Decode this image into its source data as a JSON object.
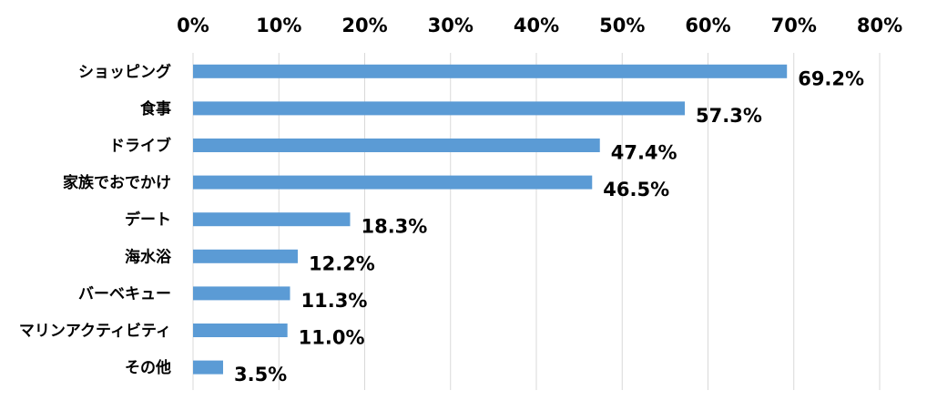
{
  "chart_data": {
    "type": "bar",
    "orientation": "horizontal",
    "categories": [
      "ショッピング",
      "食事",
      "ドライブ",
      "家族でおでかけ",
      "デート",
      "海水浴",
      "バーベキュー",
      "マリンアクティビティ",
      "その他"
    ],
    "values": [
      69.2,
      57.3,
      47.4,
      46.5,
      18.3,
      12.2,
      11.3,
      11.0,
      3.5
    ],
    "value_labels": [
      "69.2%",
      "57.3%",
      "47.4%",
      "46.5%",
      "18.3%",
      "12.2%",
      "11.3%",
      "11.0%",
      "3.5%"
    ],
    "x_ticks": [
      0,
      10,
      20,
      30,
      40,
      50,
      60,
      70,
      80
    ],
    "x_tick_labels": [
      "0%",
      "10%",
      "20%",
      "30%",
      "40%",
      "50%",
      "60%",
      "70%",
      "80%"
    ],
    "xlim": [
      0,
      80
    ],
    "x_axis_position": "top",
    "grid": true,
    "legend": "none",
    "bar_color": "#5b9bd5",
    "grid_color": "#d9d9d9",
    "title": "",
    "xlabel": "",
    "ylabel": ""
  }
}
